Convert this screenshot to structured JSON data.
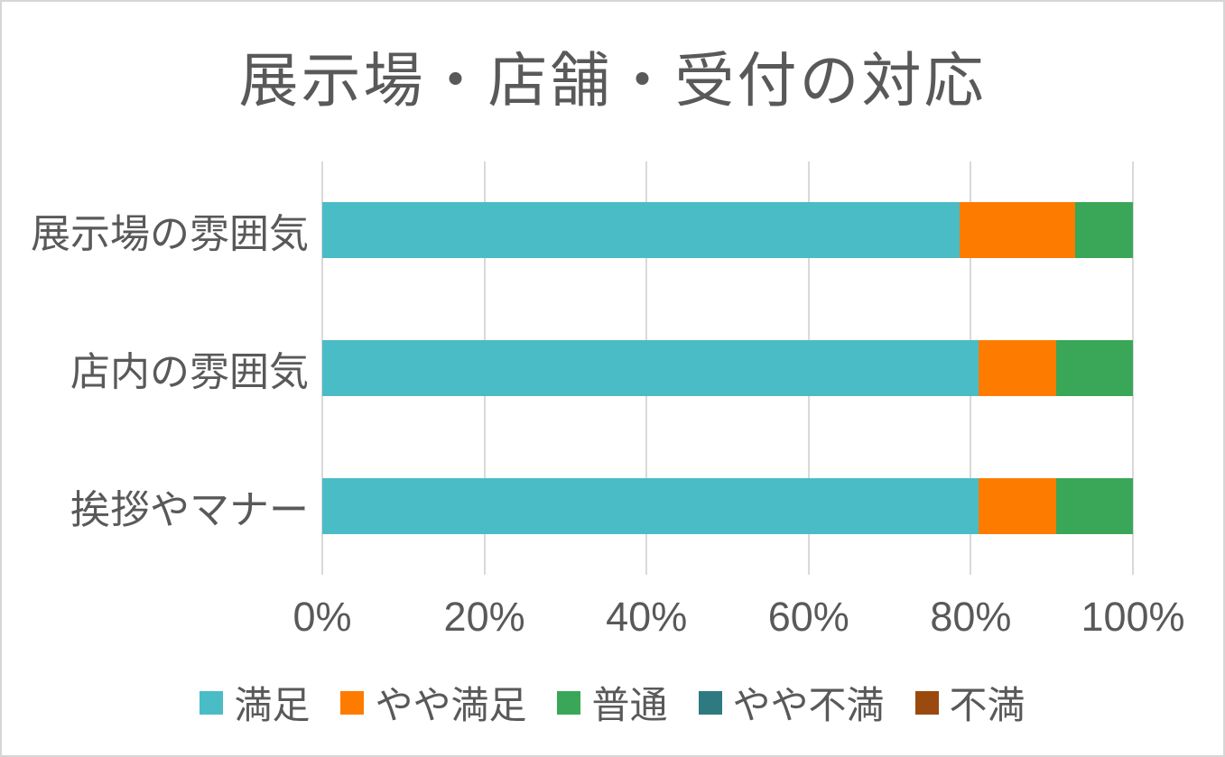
{
  "page": {
    "background": "#FFFFFF",
    "border_color": "#D6D6D6"
  },
  "chart_data": {
    "type": "bar",
    "orientation": "horizontal",
    "stacking": "percent",
    "title": "展示場・店舗・受付の対応",
    "categories": [
      "展示場の雰囲気",
      "店内の雰囲気",
      "挨拶やマナー"
    ],
    "series": [
      {
        "name": "満足",
        "color": "#49BCC6",
        "values": [
          78.6,
          81.0,
          81.0
        ]
      },
      {
        "name": "やや満足",
        "color": "#FD7C00",
        "values": [
          14.3,
          9.5,
          9.5
        ]
      },
      {
        "name": "普通",
        "color": "#39A757",
        "values": [
          7.1,
          9.5,
          9.5
        ]
      },
      {
        "name": "やや不満",
        "color": "#2E7A80",
        "values": [
          0,
          0,
          0
        ]
      },
      {
        "name": "不満",
        "color": "#9A4A0E",
        "values": [
          0,
          0,
          0
        ]
      }
    ],
    "x_tick_labels": [
      "0%",
      "20%",
      "40%",
      "60%",
      "80%",
      "100%"
    ],
    "x_tick_values": [
      0,
      20,
      40,
      60,
      80,
      100
    ],
    "xlim": [
      0,
      100
    ],
    "grid": true,
    "legend_position": "bottom",
    "colors": {
      "text": "#595959",
      "gridline": "#D9D9D9"
    }
  }
}
